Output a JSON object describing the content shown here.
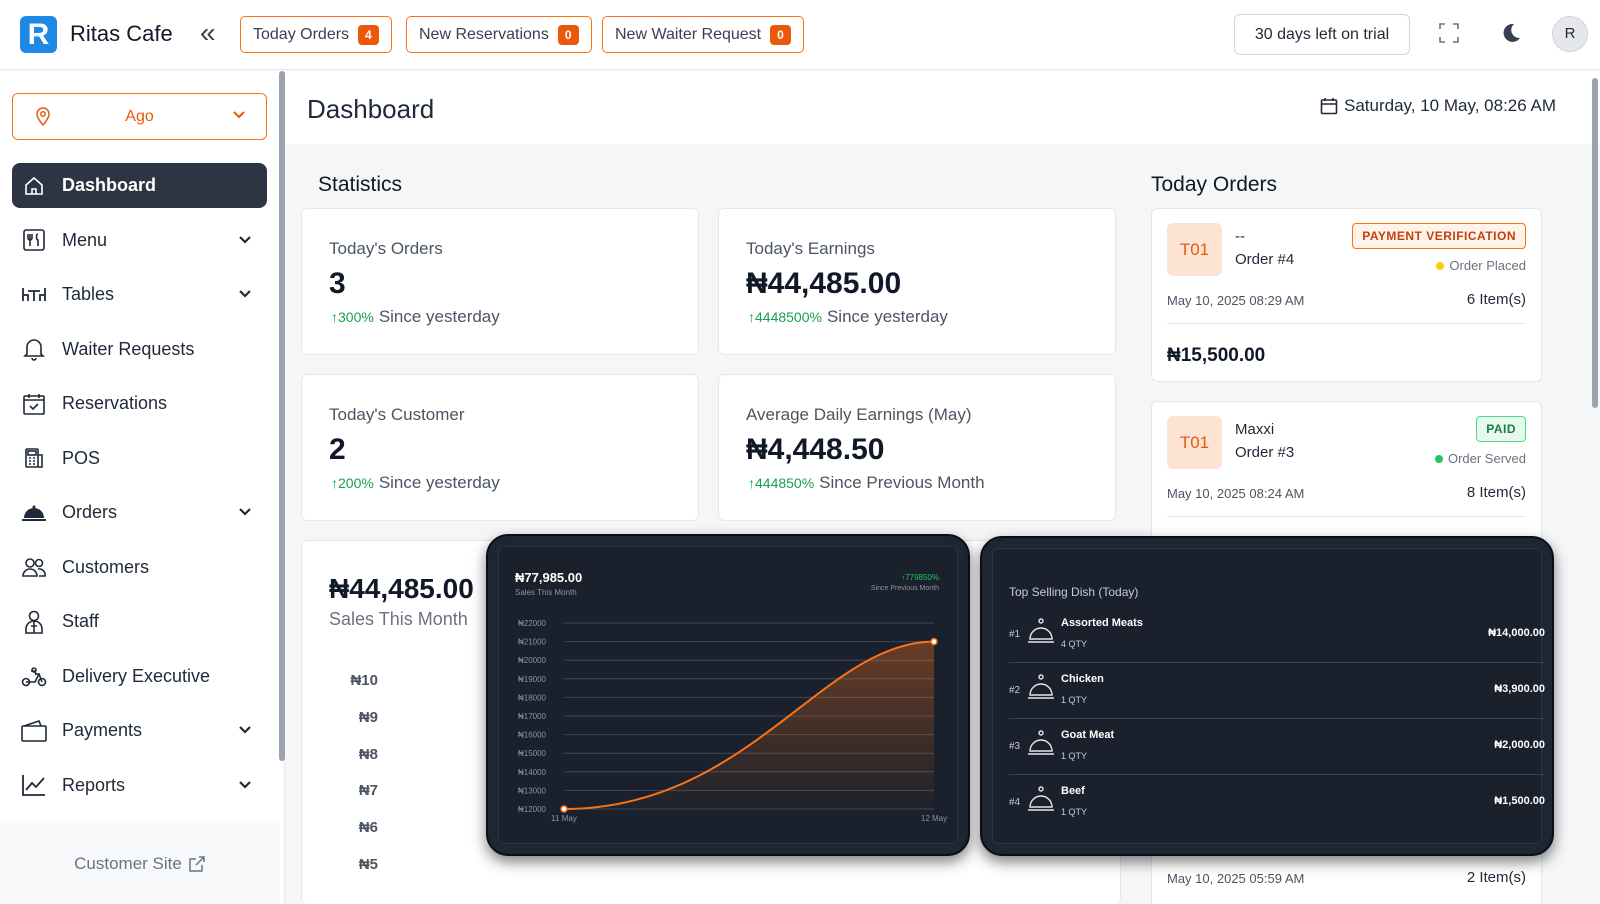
{
  "header": {
    "brand": "Ritas Cafe",
    "logo_letter": "R",
    "buttons": [
      {
        "label": "Today Orders",
        "count": "4"
      },
      {
        "label": "New Reservations",
        "count": "0"
      },
      {
        "label": "New Waiter Request",
        "count": "0"
      }
    ],
    "trial": "30 days left on trial",
    "avatar": "R"
  },
  "sidebar": {
    "location": "Ago",
    "items": [
      {
        "label": "Dashboard",
        "icon": "home-icon",
        "active": true,
        "has_caret": false
      },
      {
        "label": "Menu",
        "icon": "menu-icon",
        "has_caret": true
      },
      {
        "label": "Tables",
        "icon": "table-icon",
        "has_caret": true
      },
      {
        "label": "Waiter Requests",
        "icon": "bell-icon",
        "has_caret": false
      },
      {
        "label": "Reservations",
        "icon": "calendar-check-icon",
        "has_caret": false
      },
      {
        "label": "POS",
        "icon": "pos-icon",
        "has_caret": false
      },
      {
        "label": "Orders",
        "icon": "cloche-icon",
        "has_caret": true
      },
      {
        "label": "Customers",
        "icon": "users-icon",
        "has_caret": false
      },
      {
        "label": "Staff",
        "icon": "staff-icon",
        "has_caret": false
      },
      {
        "label": "Delivery Executive",
        "icon": "scooter-icon",
        "has_caret": false
      },
      {
        "label": "Payments",
        "icon": "wallet-icon",
        "has_caret": true
      },
      {
        "label": "Reports",
        "icon": "chart-line-icon",
        "has_caret": true
      }
    ],
    "customer_site": "Customer Site"
  },
  "main": {
    "title": "Dashboard",
    "date": "Saturday, 10 May, 08:26 AM",
    "statistics_title": "Statistics",
    "stats": [
      {
        "label": "Today's Orders",
        "value": "3",
        "pct": "300%",
        "since": "Since yesterday"
      },
      {
        "label": "Today's Earnings",
        "value": "₦44,485.00",
        "pct": "4448500%",
        "since": "Since yesterday"
      },
      {
        "label": "Today's Customer",
        "value": "2",
        "pct": "200%",
        "since": "Since yesterday"
      },
      {
        "label": "Average Daily Earnings (May)",
        "value": "₦4,448.50",
        "pct": "444850%",
        "since": "Since Previous Month"
      }
    ],
    "sales": {
      "value": "₦44,485.00",
      "label": "Sales This Month",
      "y_labels": [
        "₦10",
        "₦9",
        "₦8",
        "₦7",
        "₦6",
        "₦5"
      ]
    }
  },
  "today_orders": {
    "title": "Today Orders",
    "orders": [
      {
        "table": "T01",
        "name": "--",
        "number": "Order #4",
        "badge": "PAYMENT VERIFICATION",
        "badge_type": "verify",
        "status": "Order Placed",
        "status_color": "#facc15",
        "date": "May 10, 2025 08:29 AM",
        "items": "6 Item(s)",
        "total": "₦15,500.00"
      },
      {
        "table": "T01",
        "name": "Maxxi",
        "number": "Order #3",
        "badge": "PAID",
        "badge_type": "paid",
        "status": "Order Served",
        "status_color": "#22c55e",
        "date": "May 10, 2025 08:24 AM",
        "items": "8 Item(s)"
      }
    ],
    "partial": {
      "date": "May 10, 2025 05:59 AM",
      "items": "2 Item(s)"
    }
  },
  "overlay_chart": {
    "value": "₦77,985.00",
    "sub": "Sales This Month",
    "pct": "779850%",
    "since": "Since Previous Month"
  },
  "chart_data": {
    "type": "area",
    "title": "",
    "x": [
      "11 May",
      "12 May"
    ],
    "series": [
      {
        "values": [
          12000,
          21000
        ]
      }
    ],
    "y_ticks": [
      "₦22000",
      "₦21000",
      "₦20000",
      "₦19000",
      "₦18000",
      "₦17000",
      "₦16000",
      "₦15000",
      "₦14000",
      "₦13000",
      "₦12000"
    ],
    "ylim": [
      12000,
      22000
    ],
    "grid": true,
    "line_color": "#f97316"
  },
  "top_dishes": {
    "title": "Top Selling Dish (Today)",
    "items": [
      {
        "rank": "#1",
        "name": "Assorted Meats",
        "qty": "4 QTY",
        "price": "₦14,000.00"
      },
      {
        "rank": "#2",
        "name": "Chicken",
        "qty": "1 QTY",
        "price": "₦3,900.00"
      },
      {
        "rank": "#3",
        "name": "Goat Meat",
        "qty": "1 QTY",
        "price": "₦2,000.00"
      },
      {
        "rank": "#4",
        "name": "Beef",
        "qty": "1 QTY",
        "price": "₦1,500.00"
      }
    ]
  }
}
